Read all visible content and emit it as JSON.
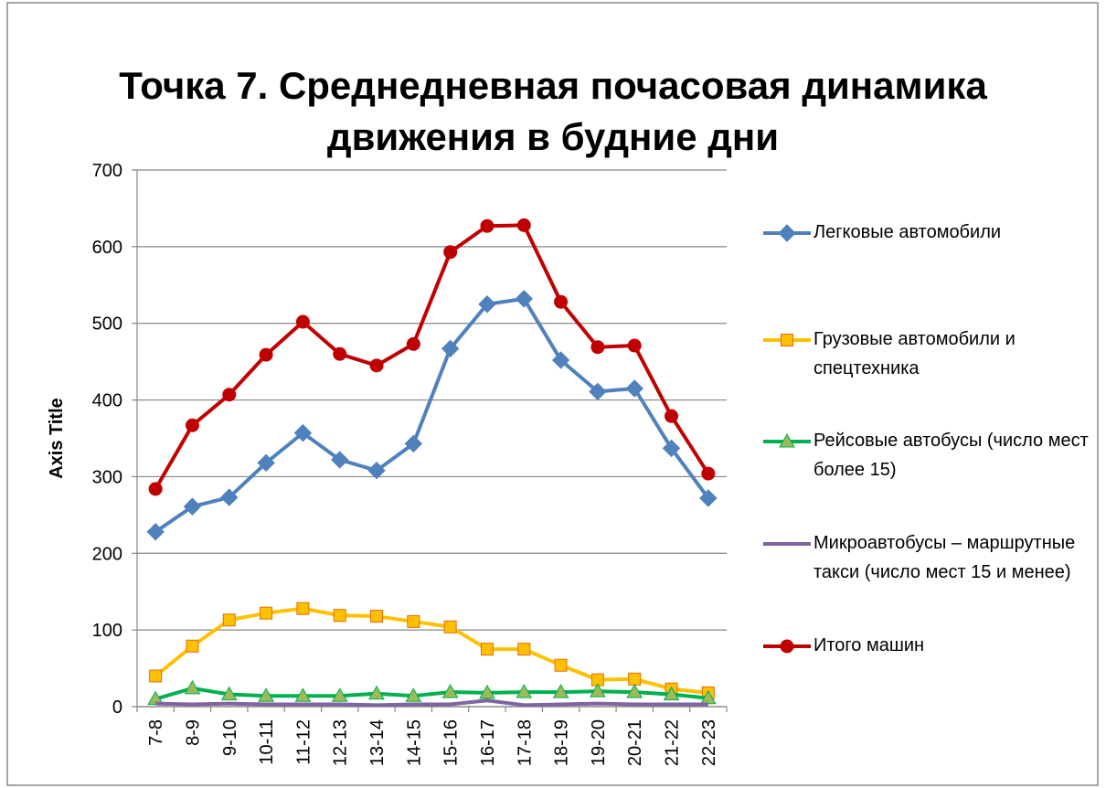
{
  "chart_data": {
    "type": "line",
    "title": "Точка 7. Среднедневная почасовая динамика движения в будние дни",
    "y_axis_title": "Axis Title",
    "categories": [
      "7-8",
      "8-9",
      "9-10",
      "10-11",
      "11-12",
      "12-13",
      "13-14",
      "14-15",
      "15-16",
      "16-17",
      "17-18",
      "18-19",
      "19-20",
      "20-21",
      "21-22",
      "22-23"
    ],
    "series": [
      {
        "name": "Легковые автомобили",
        "color": "#4f81bd",
        "marker": "diamond",
        "values": [
          228,
          261,
          273,
          318,
          357,
          322,
          308,
          343,
          467,
          525,
          532,
          452,
          411,
          415,
          337,
          272
        ]
      },
      {
        "name": "Грузовые автомобили и спецтехника",
        "color": "#ffc000",
        "marker": "square",
        "values": [
          40,
          79,
          113,
          122,
          128,
          119,
          118,
          111,
          104,
          75,
          75,
          54,
          35,
          36,
          23,
          18
        ]
      },
      {
        "name": "Рейсовые автобусы (число мест более 15)",
        "color": "#00b050",
        "marker": "triangle",
        "values": [
          10,
          24,
          16,
          14,
          14,
          14,
          17,
          14,
          19,
          18,
          19,
          19,
          20,
          19,
          16,
          11
        ]
      },
      {
        "name": "Микроавтобусы – маршрутные такси (число мест 15 и менее)",
        "color": "#8064a2",
        "marker": "none",
        "values": [
          4,
          3,
          4,
          3,
          3,
          3,
          2,
          3,
          3,
          8,
          2,
          3,
          4,
          3,
          3,
          3
        ]
      },
      {
        "name": "Итого машин",
        "color": "#c00000",
        "marker": "circle",
        "values": [
          284,
          367,
          407,
          459,
          502,
          460,
          445,
          473,
          593,
          627,
          628,
          528,
          469,
          471,
          379,
          304
        ]
      }
    ],
    "ylim": [
      0,
      700
    ],
    "yticks": [
      0,
      100,
      200,
      300,
      400,
      500,
      600,
      700
    ],
    "grid": true,
    "legend": "right"
  }
}
